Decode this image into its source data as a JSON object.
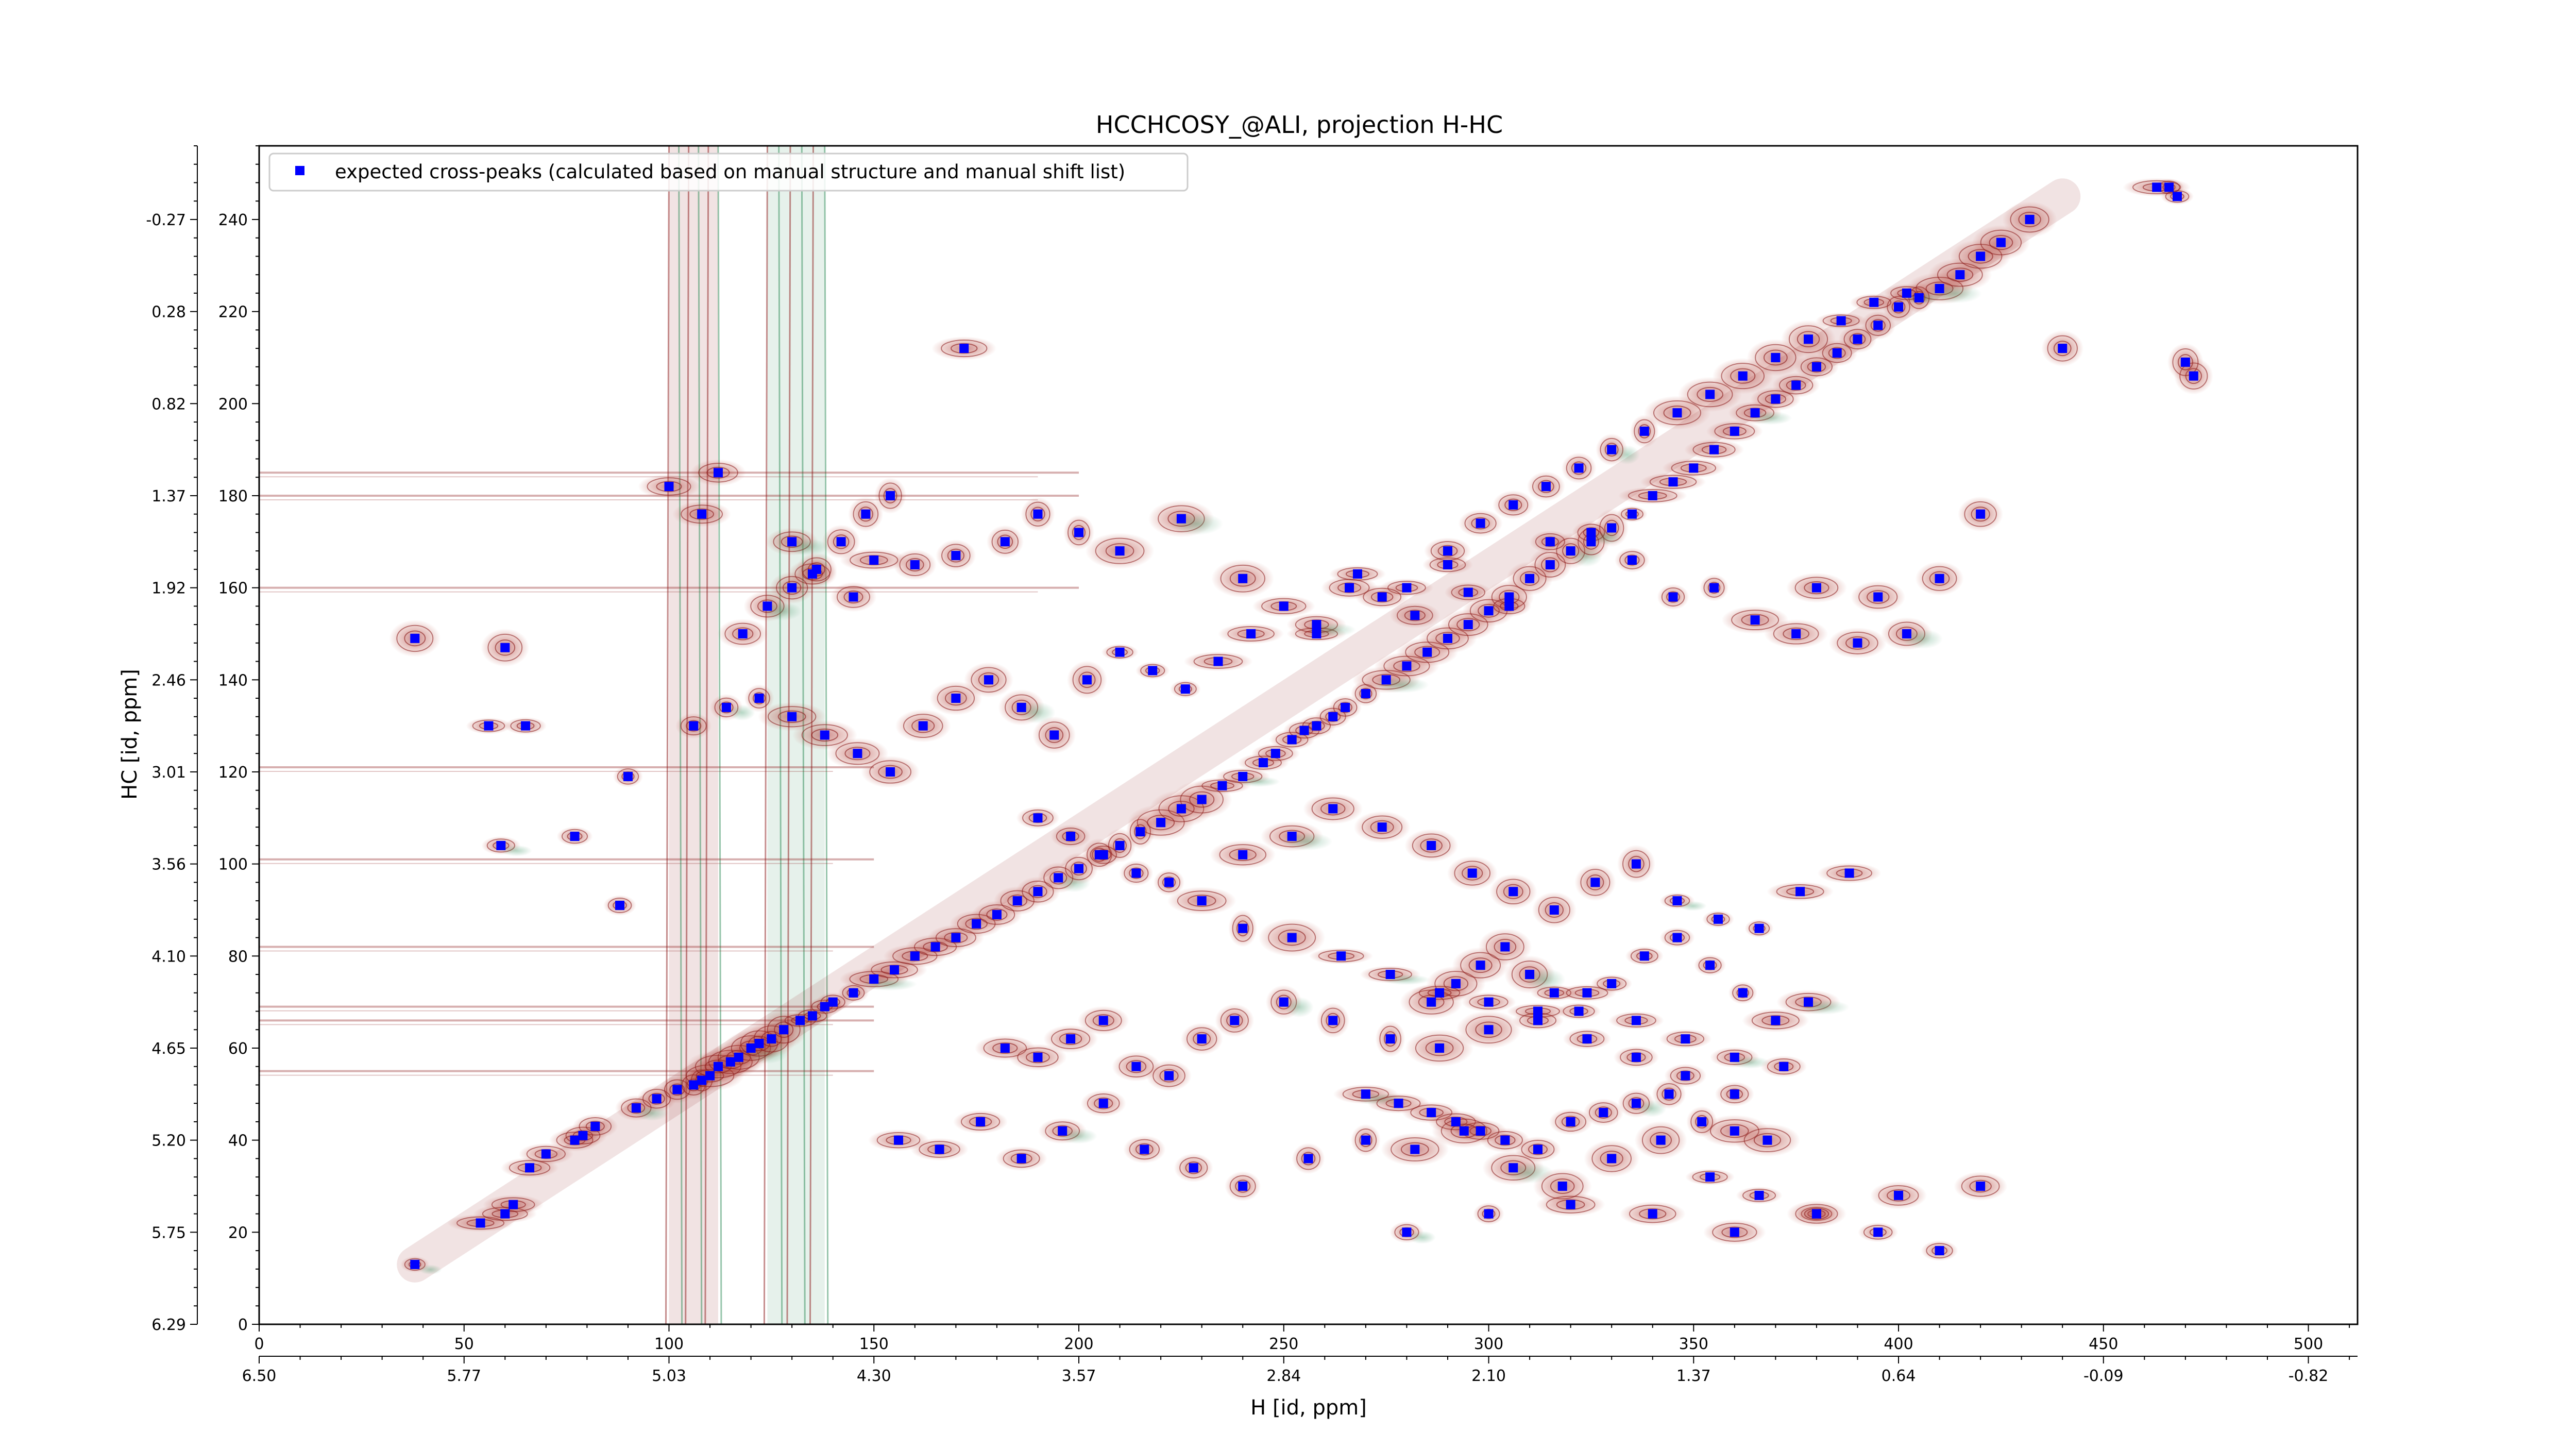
{
  "chart_data": {
    "type": "scatter",
    "title": "HCCHCOSY_@ALI, projection H-HC",
    "xlabel": "H [id, ppm]",
    "ylabel": "HC [id, ppm]",
    "xlim": [
      0,
      512
    ],
    "ylim": [
      0,
      256
    ],
    "x_ticks": [
      "0",
      "50",
      "100",
      "150",
      "200",
      "250",
      "300",
      "350",
      "400",
      "450",
      "500"
    ],
    "x_tick_values": [
      0,
      50,
      100,
      150,
      200,
      250,
      300,
      350,
      400,
      450,
      500
    ],
    "x_ppm_ticks": [
      "6.50",
      "5.77",
      "5.03",
      "4.30",
      "3.57",
      "2.84",
      "2.10",
      "1.37",
      "0.64",
      "-0.09",
      "-0.82"
    ],
    "x_ppm_tick_values": [
      0,
      50,
      100,
      150,
      200,
      250,
      300,
      350,
      400,
      450,
      500
    ],
    "y_ticks": [
      "0",
      "20",
      "40",
      "60",
      "80",
      "100",
      "120",
      "140",
      "160",
      "180",
      "200",
      "220",
      "240"
    ],
    "y_tick_values": [
      0,
      20,
      40,
      60,
      80,
      100,
      120,
      140,
      160,
      180,
      200,
      220,
      240
    ],
    "y_ppm_ticks": [
      "6.29",
      "5.75",
      "5.20",
      "4.65",
      "4.10",
      "3.56",
      "3.01",
      "2.46",
      "1.92",
      "1.37",
      "0.82",
      "0.28",
      "-0.27"
    ],
    "y_ppm_tick_values": [
      0,
      20,
      40,
      60,
      80,
      100,
      120,
      140,
      160,
      180,
      200,
      220,
      240
    ],
    "legend_position": "top-left",
    "grid": false,
    "series": [
      {
        "name": "expected cross-peaks (calculated based on manual structure and manual shift list)",
        "color": "#0000ff",
        "marker": "square",
        "x": [
          38,
          54,
          60,
          62,
          66,
          70,
          77,
          79,
          82,
          92,
          97,
          102,
          106,
          108,
          110,
          112,
          115,
          117,
          120,
          122,
          125,
          128,
          132,
          135,
          138,
          140,
          145,
          150,
          155,
          160,
          165,
          170,
          175,
          180,
          185,
          190,
          195,
          200,
          205,
          210,
          215,
          220,
          225,
          230,
          235,
          240,
          245,
          248,
          252,
          255,
          258,
          262,
          265,
          270,
          275,
          280,
          285,
          290,
          295,
          300,
          305,
          310,
          315,
          320,
          325,
          330,
          335,
          340,
          345,
          350,
          355,
          360,
          365,
          370,
          375,
          380,
          385,
          390,
          395,
          400,
          405,
          410,
          415,
          420,
          425,
          432,
          38,
          60,
          56,
          65,
          59,
          77,
          88,
          90,
          150,
          172,
          100,
          108,
          112,
          130,
          135,
          145,
          160,
          170,
          182,
          190,
          200,
          210,
          225,
          240,
          258,
          268,
          280,
          290,
          295,
          305,
          315,
          325,
          335,
          345,
          355,
          365,
          375,
          380,
          390,
          395,
          402,
          410,
          420,
          440,
          472,
          470,
          468,
          466,
          463,
          270,
          278,
          286,
          292,
          298,
          304,
          312,
          320,
          328,
          336,
          344,
          352,
          360,
          368,
          286,
          292,
          298,
          304,
          310,
          316,
          322,
          330,
          338,
          346,
          354,
          362,
          370,
          378,
          182,
          190,
          198,
          206,
          214,
          222,
          230,
          238,
          250,
          262,
          276,
          288,
          300,
          312,
          324,
          336,
          348,
          360,
          372,
          190,
          198,
          206,
          214,
          222,
          230,
          240,
          252,
          262,
          274,
          286,
          296,
          306,
          316,
          326,
          336,
          346,
          356,
          366,
          376,
          388,
          156,
          166,
          176,
          186,
          196,
          206,
          216,
          228,
          240,
          256,
          270,
          282,
          294,
          306,
          318,
          330,
          342,
          354,
          366,
          380,
          395,
          410,
          280,
          300,
          320,
          340,
          360,
          380,
          400,
          420,
          118,
          124,
          130,
          136,
          142,
          148,
          154,
          240,
          252,
          264,
          276,
          288,
          300,
          312,
          324,
          336,
          348,
          360,
          106,
          114,
          122,
          130,
          138,
          146,
          154,
          162,
          170,
          178,
          186,
          194,
          202,
          210,
          218,
          226,
          234,
          242,
          250,
          258,
          266,
          274,
          282,
          290,
          298,
          306,
          314,
          322,
          330,
          338,
          346,
          354,
          362,
          370,
          378,
          386,
          394,
          402
        ],
        "y": [
          13,
          22,
          24,
          26,
          34,
          37,
          40,
          41,
          43,
          47,
          49,
          51,
          52,
          53,
          54,
          56,
          57,
          58,
          60,
          61,
          62,
          64,
          66,
          67,
          69,
          70,
          72,
          75,
          77,
          80,
          82,
          84,
          87,
          89,
          92,
          94,
          97,
          99,
          102,
          104,
          107,
          109,
          112,
          114,
          117,
          119,
          122,
          124,
          127,
          129,
          130,
          132,
          134,
          137,
          140,
          143,
          146,
          149,
          152,
          155,
          158,
          162,
          165,
          168,
          170,
          173,
          176,
          180,
          183,
          186,
          190,
          194,
          198,
          201,
          204,
          208,
          211,
          214,
          217,
          221,
          223,
          225,
          228,
          232,
          235,
          240,
          149,
          147,
          130,
          130,
          104,
          106,
          91,
          119,
          166,
          212,
          182,
          176,
          185,
          170,
          163,
          158,
          165,
          167,
          170,
          176,
          172,
          168,
          175,
          162,
          150,
          163,
          160,
          165,
          159,
          156,
          170,
          172,
          166,
          158,
          160,
          153,
          150,
          160,
          148,
          158,
          150,
          162,
          176,
          212,
          206,
          209,
          245,
          247,
          247,
          50,
          48,
          46,
          44,
          42,
          40,
          38,
          44,
          46,
          48,
          50,
          44,
          42,
          40,
          70,
          74,
          78,
          82,
          76,
          72,
          68,
          74,
          80,
          84,
          78,
          72,
          66,
          70,
          60,
          58,
          62,
          66,
          56,
          54,
          62,
          66,
          70,
          66,
          62,
          60,
          64,
          68,
          72,
          66,
          62,
          58,
          56,
          110,
          106,
          102,
          98,
          96,
          92,
          102,
          106,
          112,
          108,
          104,
          98,
          94,
          90,
          96,
          100,
          92,
          88,
          86,
          94,
          98,
          40,
          38,
          44,
          36,
          42,
          48,
          38,
          34,
          30,
          36,
          40,
          38,
          42,
          34,
          30,
          36,
          40,
          32,
          28,
          24,
          20,
          16,
          20,
          24,
          26,
          24,
          20,
          24,
          28,
          30,
          150,
          156,
          160,
          164,
          170,
          176,
          180,
          86,
          84,
          80,
          76,
          72,
          70,
          66,
          62,
          58,
          54,
          50,
          130,
          134,
          136,
          132,
          128,
          124,
          120,
          130,
          136,
          140,
          134,
          128,
          140,
          146,
          142,
          138,
          144,
          150,
          156,
          152,
          160,
          158,
          154,
          168,
          174,
          178,
          182,
          186,
          190,
          194,
          198,
          202,
          206,
          210,
          214,
          218,
          222,
          224
        ]
      }
    ],
    "contour_colors": [
      "#8b1a1a",
      "#2e8b57"
    ]
  }
}
